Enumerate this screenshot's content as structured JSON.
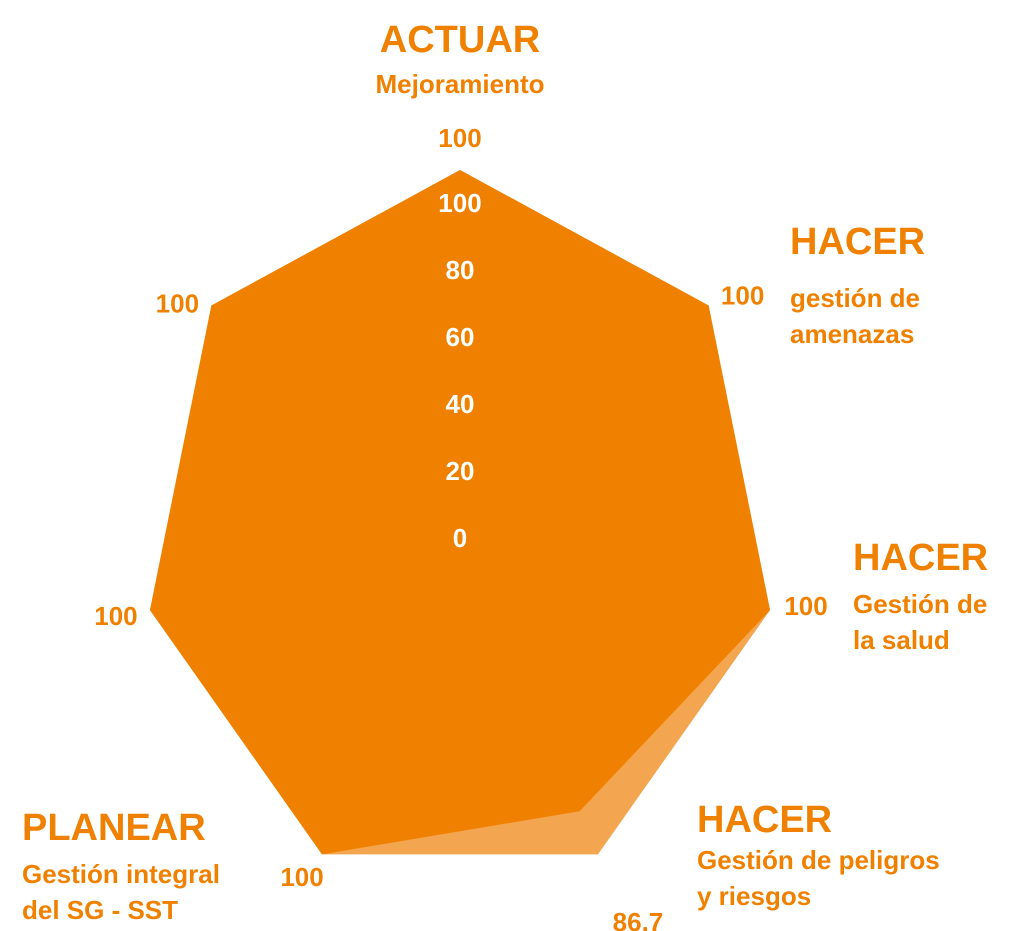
{
  "chart_data": {
    "type": "radar",
    "categories": [
      {
        "phase": "ACTUAR",
        "lines": [
          "Mejoramiento"
        ]
      },
      {
        "phase": "HACER",
        "lines": [
          "gestión de",
          "amenazas"
        ]
      },
      {
        "phase": "HACER",
        "lines": [
          "Gestión de",
          "la salud"
        ]
      },
      {
        "phase": "HACER",
        "lines": [
          "Gestión de peligros",
          "y riesgos"
        ]
      },
      {
        "phase": "PLANEAR",
        "lines": [
          "Gestión integral",
          "del SG - SST"
        ]
      },
      null,
      null
    ],
    "series": [
      {
        "color": "#f4a54f",
        "values": [
          100,
          100,
          100,
          100,
          100,
          100,
          100
        ]
      },
      {
        "color": "#f08000",
        "values": [
          100,
          100,
          100,
          86.7,
          100,
          100,
          100
        ]
      }
    ],
    "ylim": [
      0,
      100
    ],
    "yticks": [
      0,
      20,
      40,
      60,
      80,
      100
    ]
  }
}
